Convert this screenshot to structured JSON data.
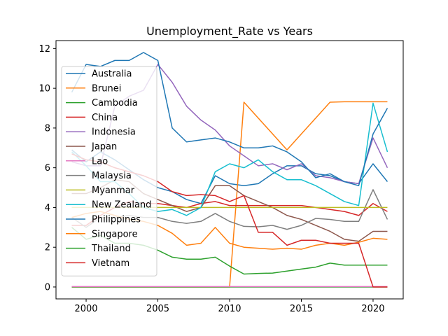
{
  "chart_data": {
    "type": "line",
    "title": "Unemployment_Rate vs Years",
    "xlabel": "",
    "ylabel": "",
    "xlim": [
      1997.9,
      2022.1
    ],
    "ylim": [
      -0.6,
      12.4
    ],
    "xticks": [
      2000,
      2005,
      2010,
      2015,
      2020
    ],
    "yticks": [
      0,
      2,
      4,
      6,
      8,
      10,
      12
    ],
    "grid": false,
    "legend_position": "upper-left",
    "x": [
      1999,
      2000,
      2001,
      2002,
      2003,
      2004,
      2005,
      2006,
      2007,
      2008,
      2009,
      2010,
      2011,
      2012,
      2013,
      2014,
      2015,
      2016,
      2017,
      2018,
      2019,
      2020,
      2021
    ],
    "series": [
      {
        "name": "Australia",
        "color": "#1f77b4",
        "values": [
          6.9,
          6.3,
          6.8,
          6.4,
          5.9,
          5.4,
          5.0,
          4.8,
          4.4,
          4.2,
          5.6,
          5.2,
          5.1,
          5.2,
          5.7,
          6.1,
          6.1,
          5.7,
          5.6,
          5.3,
          5.2,
          6.2,
          5.3
        ]
      },
      {
        "name": "Brunei",
        "color": "#ff7f0e",
        "values": [
          0.0,
          0.0,
          0.0,
          0.0,
          0.0,
          0.0,
          0.0,
          0.0,
          0.0,
          0.0,
          0.0,
          0.0,
          9.3,
          8.5,
          7.7,
          6.9,
          7.7,
          8.5,
          9.3,
          9.32,
          9.32,
          9.32,
          9.32
        ]
      },
      {
        "name": "Cambodia",
        "color": "#2ca02c",
        "values": [
          0.0,
          0.0,
          0.0,
          0.0,
          0.0,
          0.0,
          0.0,
          0.0,
          0.0,
          0.0,
          0.0,
          0.0,
          0.0,
          0.0,
          0.0,
          0.0,
          0.0,
          0.0,
          0.0,
          0.0,
          0.0,
          0.0,
          0.0
        ]
      },
      {
        "name": "China",
        "color": "#d62728",
        "values": [
          3.1,
          3.1,
          3.6,
          4.0,
          4.3,
          4.2,
          4.2,
          4.1,
          4.0,
          4.2,
          4.3,
          4.1,
          4.1,
          4.1,
          4.1,
          4.1,
          4.1,
          4.0,
          3.9,
          3.8,
          3.6,
          4.2,
          3.8
        ]
      },
      {
        "name": "Indonesia",
        "color": "#9467bd",
        "values": [
          6.3,
          6.1,
          6.1,
          9.1,
          9.6,
          9.9,
          11.2,
          10.3,
          9.1,
          8.4,
          7.9,
          7.1,
          6.6,
          6.1,
          6.2,
          5.9,
          6.2,
          5.6,
          5.5,
          5.3,
          5.2,
          7.5,
          6.0
        ]
      },
      {
        "name": "Japan",
        "color": "#8c564b",
        "values": [
          4.7,
          4.7,
          5.0,
          5.4,
          5.3,
          4.7,
          4.4,
          4.1,
          3.8,
          4.0,
          5.1,
          5.1,
          4.6,
          4.3,
          4.0,
          3.6,
          3.4,
          3.1,
          2.8,
          2.4,
          2.3,
          2.8,
          2.8
        ]
      },
      {
        "name": "Lao",
        "color": "#e377c2",
        "values": [
          0.02,
          0.02,
          0.02,
          0.02,
          0.02,
          0.02,
          0.02,
          0.02,
          0.02,
          0.02,
          0.02,
          0.02,
          0.02,
          0.02,
          0.02,
          0.02,
          0.02,
          0.02,
          0.02,
          0.02,
          0.02,
          0.02,
          0.02
        ]
      },
      {
        "name": "Malaysia",
        "color": "#7f7f7f",
        "values": [
          3.5,
          3.0,
          3.5,
          3.5,
          3.6,
          3.5,
          3.5,
          3.3,
          3.2,
          3.3,
          3.7,
          3.3,
          3.05,
          3.03,
          3.1,
          2.9,
          3.1,
          3.45,
          3.4,
          3.3,
          3.3,
          4.9,
          3.4
        ]
      },
      {
        "name": "Myanmar",
        "color": "#bcbd22",
        "values": [
          4.0,
          4.0,
          4.0,
          4.0,
          4.0,
          4.0,
          4.0,
          4.0,
          4.0,
          4.0,
          4.0,
          4.0,
          4.0,
          4.0,
          4.0,
          4.0,
          4.0,
          4.0,
          4.0,
          4.0,
          4.0,
          4.0,
          4.0
        ]
      },
      {
        "name": "New Zealand",
        "color": "#17becf",
        "values": [
          6.8,
          6.1,
          5.3,
          5.3,
          4.7,
          4.0,
          3.8,
          3.9,
          3.6,
          4.0,
          5.8,
          6.2,
          6.0,
          6.4,
          5.8,
          5.4,
          5.4,
          5.1,
          4.7,
          4.3,
          4.1,
          9.25,
          6.8
        ]
      },
      {
        "name": "Philippines",
        "color": "#1f77b4",
        "values": [
          9.8,
          11.2,
          11.1,
          11.4,
          11.4,
          11.8,
          11.4,
          8.0,
          7.3,
          7.4,
          7.5,
          7.3,
          7.0,
          7.0,
          7.1,
          6.8,
          6.3,
          5.5,
          5.7,
          5.3,
          5.1,
          7.7,
          9.0
        ]
      },
      {
        "name": "Singapore",
        "color": "#ff7f0e",
        "values": [
          3.5,
          3.7,
          3.8,
          3.6,
          3.4,
          3.3,
          3.1,
          2.7,
          2.1,
          2.2,
          3.0,
          2.2,
          2.0,
          1.95,
          1.9,
          1.95,
          1.9,
          2.1,
          2.2,
          2.1,
          2.25,
          2.45,
          2.4
        ]
      },
      {
        "name": "Thailand",
        "color": "#2ca02c",
        "values": [
          3.0,
          2.4,
          2.6,
          2.2,
          2.2,
          2.1,
          1.85,
          1.5,
          1.4,
          1.4,
          1.5,
          1.05,
          0.65,
          0.68,
          0.7,
          0.8,
          0.9,
          1.0,
          1.2,
          1.1,
          1.1,
          1.1,
          1.1
        ]
      },
      {
        "name": "Vietnam",
        "color": "#d62728",
        "values": [
          6.7,
          6.4,
          6.3,
          6.0,
          5.8,
          5.6,
          5.3,
          4.8,
          4.6,
          4.65,
          4.6,
          4.3,
          4.6,
          2.75,
          2.75,
          2.1,
          2.35,
          2.35,
          2.2,
          2.2,
          2.2,
          0.0,
          0.0
        ]
      }
    ]
  }
}
